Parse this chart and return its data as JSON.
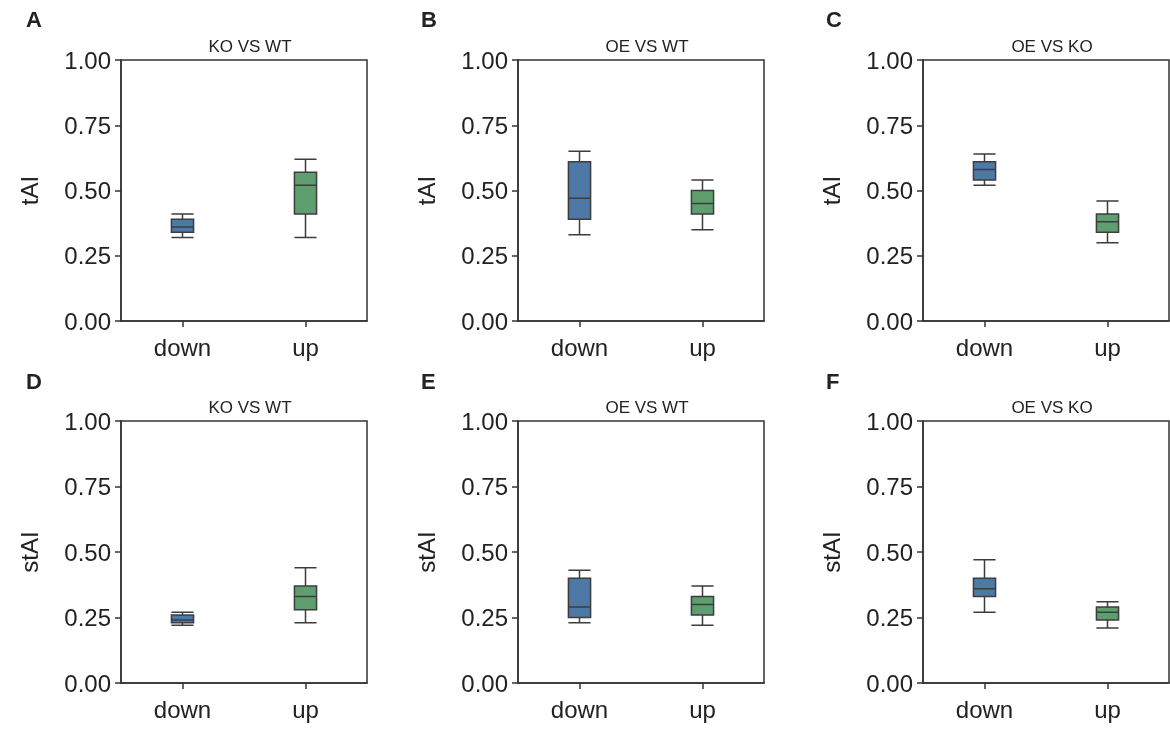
{
  "chart_data": [
    {
      "type": "box",
      "title": "KO VS WT",
      "ylabel": "tAI",
      "annotations": [
        "A"
      ],
      "categories": [
        "down",
        "up"
      ],
      "colors": [
        "#4e79a7",
        "#5f9e6e"
      ],
      "ylim": [
        0,
        1
      ],
      "yticks": [
        {
          "value": 0,
          "label": "0.00"
        },
        {
          "value": 0.25,
          "label": "0.25"
        },
        {
          "value": 0.5,
          "label": "0.50"
        },
        {
          "value": 0.75,
          "label": "0.75"
        },
        {
          "value": 1,
          "label": "1.00"
        }
      ],
      "grid": false,
      "boxes": [
        {
          "low": 0.32,
          "q1": 0.34,
          "median": 0.36,
          "q3": 0.39,
          "high": 0.41
        },
        {
          "low": 0.32,
          "q1": 0.41,
          "median": 0.52,
          "q3": 0.57,
          "high": 0.62
        }
      ]
    },
    {
      "type": "box",
      "title": "OE VS WT",
      "ylabel": "tAI",
      "annotations": [
        "B"
      ],
      "categories": [
        "down",
        "up"
      ],
      "colors": [
        "#4e79a7",
        "#5f9e6e"
      ],
      "ylim": [
        0,
        1
      ],
      "yticks": [
        {
          "value": 0,
          "label": "0.00"
        },
        {
          "value": 0.25,
          "label": "0.25"
        },
        {
          "value": 0.5,
          "label": "0.50"
        },
        {
          "value": 0.75,
          "label": "0.75"
        },
        {
          "value": 1,
          "label": "1.00"
        }
      ],
      "grid": false,
      "boxes": [
        {
          "low": 0.33,
          "q1": 0.39,
          "median": 0.47,
          "q3": 0.61,
          "high": 0.65
        },
        {
          "low": 0.35,
          "q1": 0.41,
          "median": 0.45,
          "q3": 0.5,
          "high": 0.54
        }
      ]
    },
    {
      "type": "box",
      "title": "OE VS KO",
      "ylabel": "tAI",
      "annotations": [
        "C"
      ],
      "categories": [
        "down",
        "up"
      ],
      "colors": [
        "#4e79a7",
        "#5f9e6e"
      ],
      "ylim": [
        0,
        1
      ],
      "yticks": [
        {
          "value": 0,
          "label": "0.00"
        },
        {
          "value": 0.25,
          "label": "0.25"
        },
        {
          "value": 0.5,
          "label": "0.50"
        },
        {
          "value": 0.75,
          "label": "0.75"
        },
        {
          "value": 1,
          "label": "1.00"
        }
      ],
      "grid": false,
      "boxes": [
        {
          "low": 0.52,
          "q1": 0.54,
          "median": 0.58,
          "q3": 0.61,
          "high": 0.64
        },
        {
          "low": 0.3,
          "q1": 0.34,
          "median": 0.38,
          "q3": 0.41,
          "high": 0.46
        }
      ]
    },
    {
      "type": "box",
      "title": "KO VS WT",
      "ylabel": "stAI",
      "annotations": [
        "D"
      ],
      "categories": [
        "down",
        "up"
      ],
      "colors": [
        "#4e79a7",
        "#5f9e6e"
      ],
      "ylim": [
        0,
        1
      ],
      "yticks": [
        {
          "value": 0,
          "label": "0.00"
        },
        {
          "value": 0.25,
          "label": "0.25"
        },
        {
          "value": 0.5,
          "label": "0.50"
        },
        {
          "value": 0.75,
          "label": "0.75"
        },
        {
          "value": 1,
          "label": "1.00"
        }
      ],
      "grid": false,
      "boxes": [
        {
          "low": 0.22,
          "q1": 0.23,
          "median": 0.24,
          "q3": 0.26,
          "high": 0.27
        },
        {
          "low": 0.23,
          "q1": 0.28,
          "median": 0.33,
          "q3": 0.37,
          "high": 0.44
        }
      ]
    },
    {
      "type": "box",
      "title": "OE VS WT",
      "ylabel": "stAI",
      "annotations": [
        "E"
      ],
      "categories": [
        "down",
        "up"
      ],
      "colors": [
        "#4e79a7",
        "#5f9e6e"
      ],
      "ylim": [
        0,
        1
      ],
      "yticks": [
        {
          "value": 0,
          "label": "0.00"
        },
        {
          "value": 0.25,
          "label": "0.25"
        },
        {
          "value": 0.5,
          "label": "0.50"
        },
        {
          "value": 0.75,
          "label": "0.75"
        },
        {
          "value": 1,
          "label": "1.00"
        }
      ],
      "grid": false,
      "boxes": [
        {
          "low": 0.23,
          "q1": 0.25,
          "median": 0.29,
          "q3": 0.4,
          "high": 0.43
        },
        {
          "low": 0.22,
          "q1": 0.26,
          "median": 0.3,
          "q3": 0.33,
          "high": 0.37
        }
      ]
    },
    {
      "type": "box",
      "title": "OE VS KO",
      "ylabel": "stAI",
      "annotations": [
        "F"
      ],
      "categories": [
        "down",
        "up"
      ],
      "colors": [
        "#4e79a7",
        "#5f9e6e"
      ],
      "ylim": [
        0,
        1
      ],
      "yticks": [
        {
          "value": 0,
          "label": "0.00"
        },
        {
          "value": 0.25,
          "label": "0.25"
        },
        {
          "value": 0.5,
          "label": "0.50"
        },
        {
          "value": 0.75,
          "label": "0.75"
        },
        {
          "value": 1,
          "label": "1.00"
        }
      ],
      "grid": false,
      "boxes": [
        {
          "low": 0.27,
          "q1": 0.33,
          "median": 0.36,
          "q3": 0.4,
          "high": 0.47
        },
        {
          "low": 0.21,
          "q1": 0.24,
          "median": 0.27,
          "q3": 0.29,
          "high": 0.31
        }
      ]
    }
  ]
}
